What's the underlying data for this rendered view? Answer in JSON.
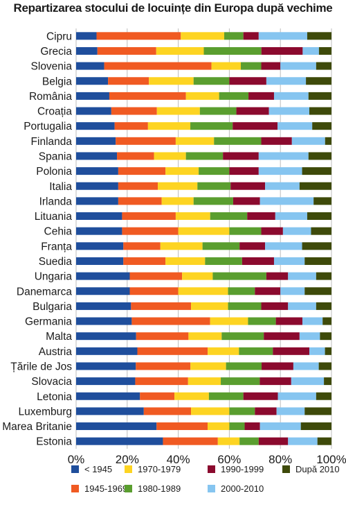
{
  "chart_data": {
    "type": "bar",
    "orientation": "horizontal",
    "stacked": "percent",
    "title": "Repartizarea stocului de locuințe din Europa după vechime",
    "xlabel": "",
    "ylabel": "",
    "xlim": [
      0,
      100
    ],
    "x_ticks": [
      "0%",
      "20%",
      "40%",
      "60%",
      "80%",
      "100%"
    ],
    "grid": "vertical",
    "legend_position": "bottom",
    "categories": [
      "Cipru",
      "Grecia",
      "Slovenia",
      "Belgia",
      "România",
      "Croația",
      "Portugalia",
      "Finlanda",
      "Spania",
      "Polonia",
      "Italia",
      "Irlanda",
      "Lituania",
      "Cehia",
      "Franța",
      "Suedia",
      "Ungaria",
      "Danemarca",
      "Bulgaria",
      "Germania",
      "Malta",
      "Austria",
      "Țările de Jos",
      "Slovacia",
      "Letonia",
      "Luxemburg",
      "Marea Britanie",
      "Estonia"
    ],
    "series": [
      {
        "name": "< 1945",
        "color": "#1f4e9c",
        "values": [
          8,
          8.5,
          11,
          12.5,
          13,
          13.5,
          15,
          15.5,
          16,
          16.5,
          16.5,
          16.5,
          18,
          18,
          18.5,
          18.5,
          21,
          21,
          21.5,
          22,
          23.5,
          23.5,
          23.5,
          23.5,
          25,
          26.5,
          31.5,
          34
        ]
      },
      {
        "name": "1945-1969",
        "color": "#f05a22",
        "values": [
          33,
          23.5,
          42,
          16,
          30,
          17.5,
          13,
          23.5,
          14.5,
          18.5,
          15.5,
          17,
          21,
          22,
          14.5,
          16.5,
          20.5,
          19,
          23.5,
          31,
          20.5,
          27,
          21.5,
          21,
          13.5,
          18.5,
          20,
          21.5
        ]
      },
      {
        "name": "1970-1979",
        "color": "#fdd422",
        "values": [
          17,
          19,
          11.5,
          17.5,
          13,
          16.5,
          16.5,
          15,
          12.5,
          13,
          15.5,
          12.5,
          13.5,
          20,
          16.5,
          15.5,
          12,
          19.5,
          14.5,
          15,
          13,
          12,
          14,
          13,
          13.5,
          15,
          8.5,
          8.5
        ]
      },
      {
        "name": "1980-1989",
        "color": "#5a9e2f",
        "values": [
          7.5,
          23,
          8,
          14,
          11.5,
          14,
          16.5,
          18.5,
          14.5,
          12,
          13,
          15.5,
          14.5,
          12.5,
          14.5,
          14.5,
          21,
          10.5,
          13,
          11,
          16.5,
          13,
          14,
          15.5,
          13.5,
          10,
          6,
          7.5
        ]
      },
      {
        "name": "1990-1999",
        "color": "#8b0a2e",
        "values": [
          6,
          16.5,
          7.5,
          14.5,
          10,
          12.5,
          17.5,
          12,
          14,
          11.5,
          13.5,
          10.5,
          11,
          8.5,
          10,
          12.5,
          8.5,
          10,
          10.5,
          10.5,
          14,
          14,
          12.5,
          12.5,
          13.5,
          8.5,
          6,
          11.5
        ]
      },
      {
        "name": "2000-2010",
        "color": "#86c5f0",
        "values": [
          19,
          6.5,
          14,
          15.5,
          13.5,
          15.5,
          13.5,
          13,
          19.5,
          17,
          13.5,
          21,
          12.5,
          11,
          14.5,
          12,
          11,
          9.5,
          11,
          8,
          8,
          6,
          10,
          13,
          15,
          11,
          16,
          11.5
        ]
      },
      {
        "name": "După 2010",
        "color": "#3e4a0a",
        "values": [
          9.5,
          5,
          6,
          10,
          9,
          8.5,
          7.5,
          2.5,
          9,
          11.5,
          12.5,
          7,
          9.5,
          8,
          11.5,
          10.5,
          6,
          10.5,
          6,
          3.5,
          4.5,
          2.5,
          5,
          3,
          6,
          10.5,
          12,
          5.5
        ]
      }
    ],
    "legend_order": [
      0,
      2,
      4,
      6,
      1,
      3,
      5
    ]
  }
}
